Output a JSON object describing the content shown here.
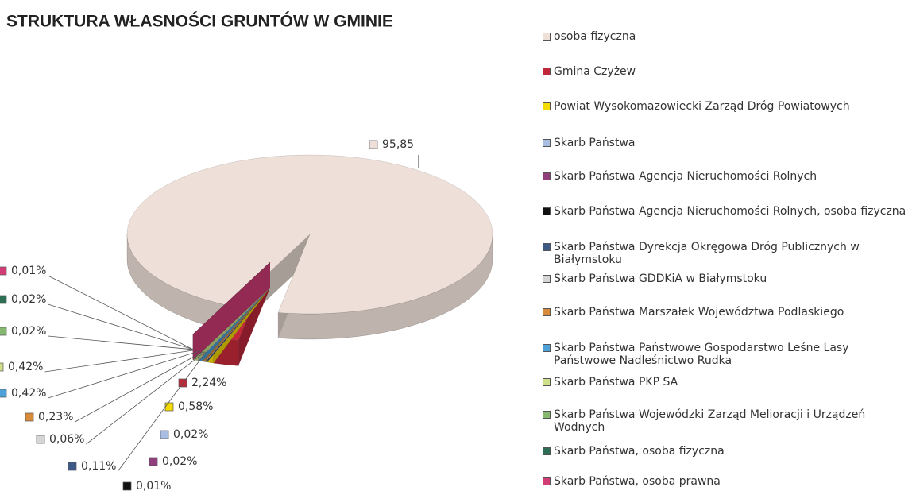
{
  "chart_data": {
    "type": "pie3d",
    "title": "STRUKTURA WŁASNOŚCI GRUNTÓW W GMINIE",
    "categories": [
      "osoba fizyczna",
      "Gmina Czyżew",
      "Powiat Wysokomazowiecki Zarząd Dróg Powiatowych",
      "Skarb Państwa",
      "Skarb Państwa Agencja Nieruchomości Rolnych",
      "Skarb Państwa Agencja Nieruchomości Rolnych, osoba fizyczna",
      "Skarb Państwa Dyrekcja Okręgowa Dróg Publicznych w Białymstoku",
      "Skarb Państwa GDDKiA w Białymstoku",
      "Skarb Państwa Marszałek Województwa Podlaskiego",
      "Skarb Państwa Państwowe Gospodarstwo Leśne Lasy Państwowe Nadleśnictwo Rudka",
      "Skarb Państwa PKP SA",
      "Skarb Państwa Wojewódzki Zarząd Melioracji i Urządzeń Wodnych",
      "Skarb Państwa, osoba fizyczna",
      "Skarb Państwa, osoba prawna"
    ],
    "values": [
      95.85,
      2.24,
      0.58,
      0.02,
      0.02,
      0.01,
      0.11,
      0.06,
      0.23,
      0.42,
      0.42,
      0.02,
      0.02,
      0.01
    ],
    "value_labels": [
      "95,85",
      "2,24%",
      "0,58%",
      "0,02%",
      "0,02%",
      "0,01%",
      "0,11%",
      "0,06%",
      "0,23%",
      "0,42%",
      "0,42%",
      "0,02%",
      "0,02%",
      "0,01%"
    ],
    "colors": [
      "#eee0d8",
      "#c0283a",
      "#f5dc00",
      "#a9bde3",
      "#8e3f7c",
      "#111111",
      "#3d5a87",
      "#d6d6d6",
      "#d98b3a",
      "#4ea0d8",
      "#cfe08a",
      "#86b870",
      "#2e6e55",
      "#d23c76"
    ]
  }
}
